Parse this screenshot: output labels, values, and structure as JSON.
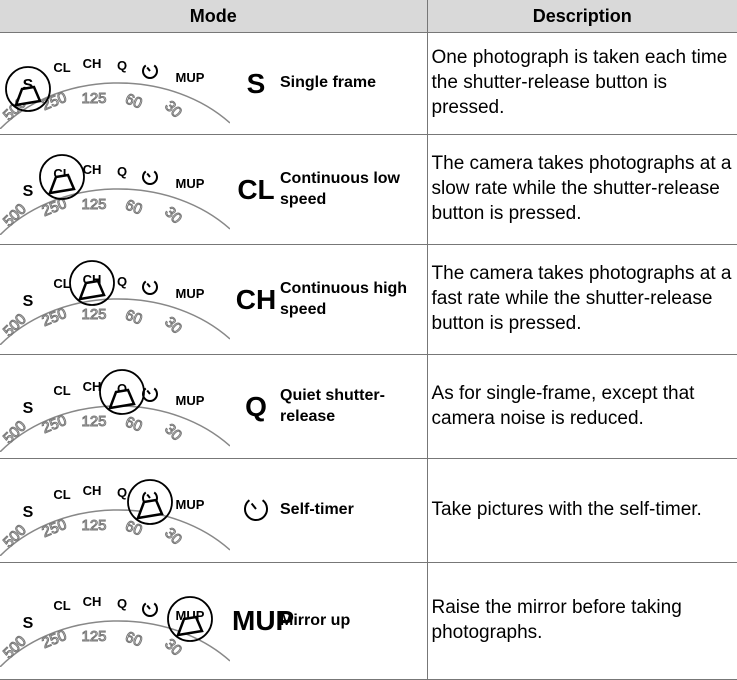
{
  "header": {
    "mode": "Mode",
    "description": "Description"
  },
  "dial": {
    "modes": [
      "S",
      "CL",
      "CH",
      "Q",
      "MUP"
    ],
    "speeds": [
      "500",
      "250",
      "125",
      "60",
      "30"
    ]
  },
  "rows": [
    {
      "symbol": "S",
      "name": "Single frame",
      "description": "One photograph is taken each time the shutter-release button is pressed."
    },
    {
      "symbol": "CL",
      "name": "Continuous low speed",
      "description": "The camera takes photographs at a slow rate while the shutter-release button is pressed."
    },
    {
      "symbol": "CH",
      "name": "Continuous high speed",
      "description": "The camera takes photographs at a fast rate while the shutter-release button is pressed."
    },
    {
      "symbol": "Q",
      "name": "Quiet shutter-release",
      "description": "As for single-frame, except that camera noise is reduced."
    },
    {
      "name": "Self-timer",
      "description": "Take pictures with the self-timer."
    },
    {
      "symbol": "MUP",
      "name": "Mirror up",
      "description": "Raise the mirror before taking photographs."
    }
  ]
}
